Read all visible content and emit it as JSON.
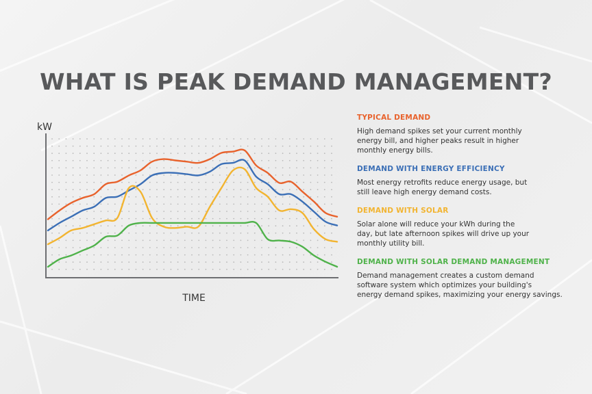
{
  "title": "WHAT IS PEAK DEMAND MANAGEMENT?",
  "chart_data": {
    "type": "line",
    "title": "WHAT IS PEAK DEMAND MANAGEMENT?",
    "ylabel": "kW",
    "xlabel": "TIME",
    "grid": true,
    "legend_placement": "right",
    "x": [
      0,
      4,
      8,
      12,
      16,
      20,
      24,
      28,
      32,
      36,
      40,
      44,
      48,
      52,
      56,
      60,
      64,
      68,
      72,
      76,
      80,
      84,
      88,
      92,
      96,
      100
    ],
    "series": [
      {
        "name": "TYPICAL DEMAND",
        "color": "#e8622c",
        "values": [
          38,
          45,
          51,
          55,
          58,
          66,
          68,
          73,
          77,
          84,
          86,
          85,
          84,
          83,
          86,
          91,
          92,
          93,
          81,
          75,
          67,
          68,
          60,
          52,
          43,
          40
        ]
      },
      {
        "name": "DEMAND WITH ENERGY EFFICIENCY",
        "color": "#3b6fb6",
        "values": [
          29,
          35,
          40,
          45,
          48,
          55,
          56,
          61,
          66,
          73,
          75,
          75,
          74,
          73,
          76,
          82,
          83,
          85,
          72,
          66,
          58,
          58,
          52,
          44,
          36,
          33
        ]
      },
      {
        "name": "DEMAND WITH SOLAR",
        "color": "#f2b430",
        "values": [
          18,
          23,
          29,
          31,
          34,
          37,
          39,
          63,
          60,
          39,
          32,
          31,
          32,
          32,
          48,
          63,
          77,
          78,
          63,
          56,
          45,
          46,
          43,
          30,
          22,
          20
        ]
      },
      {
        "name": "DEMAND WITH SOLAR DEMAND MANAGEMENT",
        "color": "#4fb24a",
        "values": [
          0,
          6,
          9,
          13,
          17,
          24,
          25,
          33,
          35,
          35,
          35,
          35,
          35,
          35,
          35,
          35,
          35,
          35,
          35,
          22,
          21,
          20,
          16,
          9,
          4,
          0
        ]
      }
    ]
  },
  "legend": [
    {
      "heading": "TYPICAL DEMAND",
      "color": "#e8622c",
      "lines": [
        "High demand spikes set your current monthly",
        "energy bill, and higher peaks result in higher",
        "monthly energy bills."
      ]
    },
    {
      "heading": "DEMAND WITH ENERGY EFFICIENCY",
      "color": "#3b6fb6",
      "lines": [
        "Most energy retrofits reduce energy usage, but",
        "still leave high energy demand costs."
      ]
    },
    {
      "heading": "DEMAND WITH SOLAR",
      "color": "#f2b430",
      "lines": [
        "Solar alone will reduce your kWh during the",
        "day, but late afternoon spikes will drive up your",
        "monthly utility bill."
      ]
    },
    {
      "heading": "DEMAND WITH SOLAR DEMAND MANAGEMENT",
      "color": "#4fb24a",
      "lines": [
        "Demand management creates a custom demand",
        "software system which optimizes your building's",
        "energy demand spikes, maximizing your energy savings."
      ]
    }
  ]
}
